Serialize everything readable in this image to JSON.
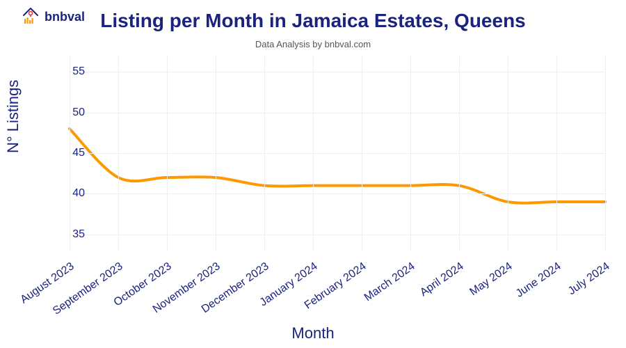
{
  "brand": {
    "name": "bnbval",
    "logo_bars_color": "#ff9800",
    "logo_house_color": "#1a237e",
    "logo_accent_color": "#e53935"
  },
  "chart": {
    "type": "line",
    "title": "Listing per Month in Jamaica Estates, Queens",
    "title_fontsize": 28,
    "subtitle": "Data Analysis by bnbval.com",
    "subtitle_fontsize": 13,
    "x_axis_label": "Month",
    "y_axis_label": "N° Listings",
    "axis_label_fontsize": 22,
    "tick_fontsize": 16,
    "text_color": "#1a237e",
    "subtitle_color": "#555555",
    "background_color": "#ffffff",
    "grid_color": "#eeeeee",
    "line_color": "#ff9800",
    "line_width": 4,
    "ylim": [
      33,
      57
    ],
    "ytick_step": 5,
    "yticks": [
      35,
      40,
      45,
      50,
      55
    ],
    "categories": [
      "August 2023",
      "September 2023",
      "October 2023",
      "November 2023",
      "December 2023",
      "January 2024",
      "February 2024",
      "March 2024",
      "April 2024",
      "May 2024",
      "June 2024",
      "July 2024"
    ],
    "values": [
      48,
      42,
      42,
      42,
      41,
      41,
      41,
      41,
      41,
      39,
      39,
      39
    ],
    "x_tick_rotation_deg": -35,
    "smooth": true
  }
}
